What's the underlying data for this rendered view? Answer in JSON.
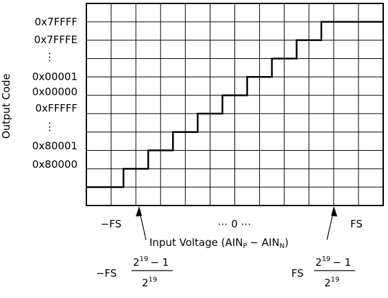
{
  "y_axis": {
    "title": "Output Code",
    "codes": [
      "0x7FFFF",
      "0x7FFFE",
      "⋮",
      "0x00001",
      "0x00000",
      "0xFFFFF",
      "⋮",
      "0x80001",
      "0x80000"
    ]
  },
  "x_axis": {
    "labels": [
      "−FS",
      "⋯ 0 ⋯",
      "FS"
    ],
    "title": {
      "text1": "Input Voltage (AIN",
      "sub1": "P",
      "text2": "− AIN",
      "sub2": "N",
      "text3": ")"
    }
  },
  "annotations": [
    {
      "prefix": "−FS",
      "base": "2",
      "exponent": "19",
      "minus_one": "− 1",
      "denominator_base": "2",
      "denominator_exponent": "19"
    },
    {
      "prefix": "FS",
      "base": "2",
      "exponent": "19",
      "minus_one": "− 1",
      "denominator_base": "2",
      "denominator_exponent": "19"
    }
  ]
}
